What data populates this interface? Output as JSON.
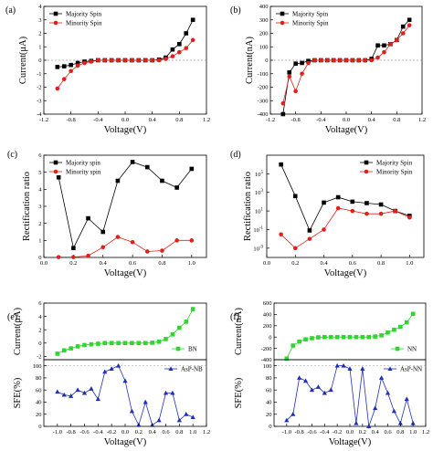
{
  "chart_data": [
    {
      "panel_label": "(a)",
      "type": "line",
      "xlabel": "Voltage(V)",
      "ylabel": "Current(μA)",
      "xlim": [
        -1.2,
        1.2
      ],
      "ylim": [
        -4,
        4
      ],
      "xticks": [
        "-1.2",
        "-0.8",
        "-0.4",
        "0.0",
        "0.4",
        "0.8",
        "1.2"
      ],
      "yticks": [
        "-4",
        "-3",
        "-2",
        "-1",
        "0",
        "1",
        "2",
        "3",
        "4"
      ],
      "legend_position": "top-left",
      "series": [
        {
          "name": "Majority Spin",
          "color": "#000000",
          "marker": "square",
          "x": [
            -1.0,
            -0.9,
            -0.8,
            -0.7,
            -0.6,
            -0.5,
            -0.4,
            -0.3,
            -0.2,
            -0.1,
            0.0,
            0.1,
            0.2,
            0.3,
            0.4,
            0.5,
            0.6,
            0.7,
            0.8,
            0.9,
            1.0
          ],
          "y": [
            -0.5,
            -0.45,
            -0.35,
            -0.2,
            -0.1,
            -0.05,
            0,
            0,
            0,
            0,
            0,
            0,
            0,
            0,
            0,
            0.05,
            0.2,
            0.8,
            1.2,
            2.0,
            3.0
          ]
        },
        {
          "name": "Minority Spin",
          "color": "#e0201b",
          "marker": "circle",
          "x": [
            -1.0,
            -0.9,
            -0.8,
            -0.7,
            -0.6,
            -0.5,
            -0.4,
            -0.3,
            -0.2,
            -0.1,
            0.0,
            0.1,
            0.2,
            0.3,
            0.4,
            0.5,
            0.6,
            0.7,
            0.8,
            0.9,
            1.0
          ],
          "y": [
            -2.1,
            -1.4,
            -0.8,
            -0.4,
            -0.2,
            -0.1,
            0,
            0,
            0,
            0,
            0,
            0,
            0,
            0,
            0,
            0,
            0.1,
            0.3,
            0.6,
            0.9,
            1.5
          ]
        }
      ]
    },
    {
      "panel_label": "(b)",
      "type": "line",
      "xlabel": "Voltage(V)",
      "ylabel": "Current(nA)",
      "xlim": [
        -1.2,
        1.2
      ],
      "ylim": [
        -400,
        400
      ],
      "xticks": [
        "-1.2",
        "-0.8",
        "-0.4",
        "0.0",
        "0.4",
        "0.8",
        "1.2"
      ],
      "yticks": [
        "-400",
        "-300",
        "-200",
        "-100",
        "0",
        "100",
        "200",
        "300",
        "400"
      ],
      "legend_position": "top-left",
      "series": [
        {
          "name": "Majority Spin",
          "color": "#000000",
          "marker": "square",
          "x": [
            -1.0,
            -0.9,
            -0.8,
            -0.7,
            -0.6,
            -0.5,
            -0.4,
            -0.3,
            -0.2,
            -0.1,
            0.0,
            0.1,
            0.2,
            0.3,
            0.4,
            0.5,
            0.6,
            0.7,
            0.8,
            0.9,
            1.0
          ],
          "y": [
            -400,
            -90,
            -25,
            -20,
            -5,
            0,
            0,
            0,
            0,
            0,
            0,
            0,
            0,
            0,
            10,
            110,
            110,
            120,
            150,
            250,
            300
          ]
        },
        {
          "name": "Minority Spin",
          "color": "#e0201b",
          "marker": "circle",
          "x": [
            -1.0,
            -0.9,
            -0.8,
            -0.7,
            -0.6,
            -0.5,
            -0.4,
            -0.3,
            -0.2,
            -0.1,
            0.0,
            0.1,
            0.2,
            0.3,
            0.4,
            0.5,
            0.6,
            0.7,
            0.8,
            0.9,
            1.0
          ],
          "y": [
            -320,
            -120,
            -230,
            -100,
            -20,
            0,
            0,
            0,
            0,
            0,
            0,
            0,
            0,
            0,
            0,
            20,
            60,
            120,
            150,
            200,
            260
          ]
        }
      ]
    },
    {
      "panel_label": "(c)",
      "type": "line",
      "xlabel": "Voltage(V)",
      "ylabel": "Rectification ratio",
      "xlim": [
        0,
        1.1
      ],
      "ylim": [
        0,
        6
      ],
      "xticks": [
        "0.0",
        "0.2",
        "0.4",
        "0.6",
        "0.8",
        "1.0"
      ],
      "yticks": [
        "0",
        "1",
        "2",
        "3",
        "4",
        "5",
        "6"
      ],
      "legend_position": "top-left",
      "series": [
        {
          "name": "Majority spin",
          "color": "#000000",
          "marker": "square",
          "x": [
            0.1,
            0.2,
            0.3,
            0.4,
            0.5,
            0.6,
            0.7,
            0.8,
            0.9,
            1.0
          ],
          "y": [
            4.7,
            0.55,
            2.3,
            1.5,
            4.5,
            5.6,
            5.3,
            4.5,
            4.1,
            5.2
          ]
        },
        {
          "name": "Minority spin",
          "color": "#e0201b",
          "marker": "circle",
          "x": [
            0.1,
            0.2,
            0.3,
            0.4,
            0.5,
            0.6,
            0.7,
            0.8,
            0.9,
            1.0
          ],
          "y": [
            0.02,
            0.02,
            0.1,
            0.6,
            1.2,
            0.9,
            0.35,
            0.4,
            1.0,
            1.0
          ]
        }
      ]
    },
    {
      "panel_label": "(d)",
      "type": "line",
      "xlabel": "Voltage(V)",
      "ylabel": "Rectification ratio",
      "yscale": "log",
      "xlim": [
        0,
        1.1
      ],
      "ylim": [
        0.0001,
        10000000
      ],
      "xticks": [
        "0.0",
        "0.2",
        "0.4",
        "0.6",
        "0.8",
        "1.0"
      ],
      "yticks_exp": [
        "-3",
        "-1",
        "1",
        "3",
        "5"
      ],
      "legend_position": "top-right",
      "series": [
        {
          "name": "Majority Spin",
          "color": "#000000",
          "marker": "square",
          "x": [
            0.1,
            0.2,
            0.3,
            0.4,
            0.5,
            0.6,
            0.7,
            0.8,
            0.9,
            1.0
          ],
          "y": [
            1000000,
            400,
            0.08,
            80,
            300,
            100,
            70,
            50,
            10,
            3
          ]
        },
        {
          "name": "Minority Spin",
          "color": "#e0201b",
          "marker": "circle",
          "x": [
            0.1,
            0.2,
            0.3,
            0.4,
            0.5,
            0.6,
            0.7,
            0.8,
            0.9,
            1.0
          ],
          "y": [
            0.03,
            0.001,
            0.01,
            0.1,
            20,
            10,
            5,
            5,
            10,
            2
          ]
        }
      ]
    },
    {
      "panel_label": "(e)",
      "type": "scatter",
      "xlabel": "Voltage(V)",
      "xlim": [
        -1.2,
        1.2
      ],
      "xticks": [
        "-1.0",
        "-0.8",
        "-0.6",
        "-0.4",
        "-0.2",
        "0.0",
        "0.2",
        "0.4",
        "0.6",
        "0.8",
        "1.0",
        "1.2"
      ],
      "top": {
        "ylabel": "Current(μA)",
        "ylim": [
          -2.5,
          6
        ],
        "yticks": [
          "-2",
          "0",
          "2",
          "4",
          "6"
        ],
        "legend_position": "bottom-right",
        "series": [
          {
            "name": "BN",
            "color": "#2fd62f",
            "marker": "square",
            "x": [
              -1.0,
              -0.9,
              -0.8,
              -0.7,
              -0.6,
              -0.5,
              -0.4,
              -0.3,
              -0.2,
              -0.1,
              0.0,
              0.1,
              0.2,
              0.3,
              0.4,
              0.5,
              0.6,
              0.7,
              0.8,
              0.9,
              1.0
            ],
            "y": [
              -1.6,
              -1.1,
              -0.8,
              -0.5,
              -0.3,
              -0.2,
              -0.1,
              0,
              0,
              0,
              0,
              0,
              0,
              0,
              0.05,
              0.2,
              0.6,
              1.3,
              2.3,
              3.2,
              5.1
            ]
          }
        ]
      },
      "bottom": {
        "ylabel": "SFE(%)",
        "ylim": [
          0,
          110
        ],
        "yticks": [
          "0",
          "20",
          "40",
          "60",
          "80",
          "100"
        ],
        "legend_position": "top-right",
        "series": [
          {
            "name": "AsP-NB",
            "color": "#1f2fb8",
            "marker": "triangle",
            "x": [
              -1.0,
              -0.9,
              -0.8,
              -0.7,
              -0.6,
              -0.5,
              -0.4,
              -0.3,
              -0.2,
              -0.1,
              0.0,
              0.1,
              0.2,
              0.3,
              0.4,
              0.5,
              0.6,
              0.7,
              0.8,
              0.9,
              1.0
            ],
            "y": [
              57,
              52,
              50,
              60,
              55,
              62,
              45,
              90,
              95,
              100,
              75,
              25,
              2,
              40,
              2,
              10,
              55,
              55,
              10,
              20,
              15
            ]
          }
        ]
      }
    },
    {
      "panel_label": "(f)",
      "type": "scatter",
      "xlabel": "Voltage(V)",
      "xlim": [
        -1.2,
        1.2
      ],
      "xticks": [
        "-1.0",
        "-0.8",
        "-0.6",
        "-0.4",
        "-0.2",
        "0.0",
        "0.2",
        "0.4",
        "0.6",
        "0.8",
        "1.0",
        "1.2"
      ],
      "top": {
        "ylabel": "Current(nA)",
        "ylim": [
          -400,
          600
        ],
        "yticks": [
          "-400",
          "-200",
          "0",
          "200",
          "400",
          "600"
        ],
        "legend_position": "bottom-right",
        "series": [
          {
            "name": "NN",
            "color": "#2fd62f",
            "marker": "square",
            "x": [
              -1.0,
              -0.9,
              -0.8,
              -0.7,
              -0.6,
              -0.5,
              -0.4,
              -0.3,
              -0.2,
              -0.1,
              0.0,
              0.1,
              0.2,
              0.3,
              0.4,
              0.5,
              0.6,
              0.7,
              0.8,
              0.9,
              1.0
            ],
            "y": [
              -380,
              -150,
              -80,
              -40,
              -20,
              -5,
              0,
              0,
              0,
              0,
              0,
              0,
              0,
              0,
              10,
              30,
              80,
              130,
              180,
              260,
              410
            ]
          }
        ]
      },
      "bottom": {
        "ylabel": "SFE(%)",
        "ylim": [
          0,
          110
        ],
        "yticks": [
          "0",
          "20",
          "40",
          "60",
          "80",
          "100"
        ],
        "legend_position": "top-right",
        "series": [
          {
            "name": "AsP-NN",
            "color": "#1f2fb8",
            "marker": "triangle",
            "x": [
              -1.0,
              -0.9,
              -0.8,
              -0.7,
              -0.6,
              -0.5,
              -0.4,
              -0.3,
              -0.2,
              -0.1,
              0.0,
              0.1,
              0.2,
              0.3,
              0.4,
              0.5,
              0.6,
              0.7,
              0.8,
              0.9,
              1.0
            ],
            "y": [
              10,
              20,
              80,
              75,
              60,
              65,
              55,
              60,
              100,
              100,
              95,
              5,
              95,
              0,
              30,
              80,
              55,
              25,
              5,
              45,
              5
            ]
          }
        ]
      }
    }
  ]
}
